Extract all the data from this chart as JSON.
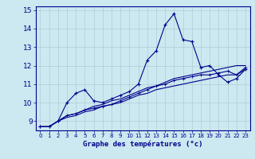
{
  "xlabel": "Graphe des températures (°c)",
  "x_ticks": [
    0,
    1,
    2,
    3,
    4,
    5,
    6,
    7,
    8,
    9,
    10,
    11,
    12,
    13,
    14,
    15,
    16,
    17,
    18,
    19,
    20,
    21,
    22,
    23
  ],
  "ylim": [
    8.5,
    15.2
  ],
  "xlim": [
    -0.5,
    23.5
  ],
  "yticks": [
    9,
    10,
    11,
    12,
    13,
    14,
    15
  ],
  "bg_color": "#cce8f0",
  "line_color": "#00008b",
  "grid_color": "#b0cdd6",
  "series": [
    [
      8.7,
      8.7,
      9.0,
      10.0,
      10.5,
      10.7,
      10.1,
      10.0,
      10.2,
      10.4,
      10.6,
      11.0,
      12.3,
      12.8,
      14.2,
      14.8,
      13.4,
      13.3,
      11.9,
      12.0,
      11.5,
      11.1,
      11.3,
      11.8
    ],
    [
      8.7,
      8.7,
      9.0,
      9.3,
      9.4,
      9.6,
      9.8,
      9.9,
      10.1,
      10.2,
      10.4,
      10.6,
      10.8,
      10.9,
      11.1,
      11.3,
      11.4,
      11.5,
      11.6,
      11.7,
      11.8,
      11.9,
      12.0,
      12.0
    ],
    [
      8.7,
      8.7,
      9.0,
      9.2,
      9.3,
      9.5,
      9.6,
      9.8,
      9.9,
      10.0,
      10.2,
      10.4,
      10.5,
      10.7,
      10.8,
      10.9,
      11.0,
      11.1,
      11.2,
      11.3,
      11.4,
      11.5,
      11.5,
      11.8
    ],
    [
      8.7,
      8.7,
      9.0,
      9.3,
      9.4,
      9.6,
      9.7,
      9.8,
      9.9,
      10.1,
      10.3,
      10.5,
      10.7,
      10.9,
      11.0,
      11.2,
      11.3,
      11.4,
      11.5,
      11.5,
      11.6,
      11.7,
      11.5,
      11.9
    ]
  ]
}
